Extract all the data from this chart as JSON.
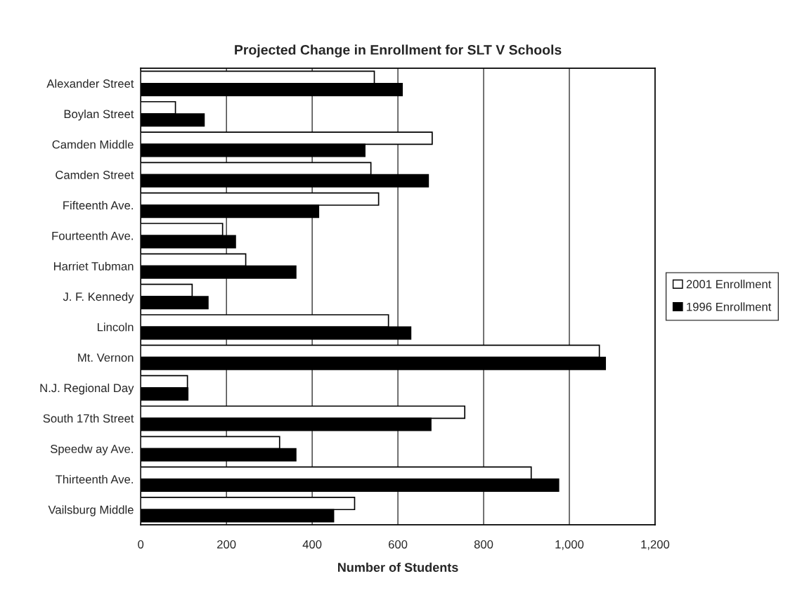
{
  "chart_data": {
    "type": "bar",
    "orientation": "horizontal",
    "title": "Projected Change in Enrollment for SLT V Schools",
    "xlabel": "Number of Students",
    "categories": [
      "Alexander Street",
      "Boylan Street",
      "Camden Middle",
      "Camden Street",
      "Fifteenth Ave.",
      "Fourteenth Ave.",
      "Harriet Tubman",
      "J. F. Kennedy",
      "Lincoln",
      "Mt. Vernon",
      "N.J. Regional Day",
      "South 17th Street",
      "Speedw ay Ave.",
      "Thirteenth Ave.",
      "Vailsburg Middle"
    ],
    "series": [
      {
        "name": "2001 Enrollment",
        "color": "#ffffff",
        "values": [
          545,
          81,
          680,
          537,
          555,
          191,
          245,
          120,
          578,
          1070,
          109,
          756,
          324,
          911,
          499
        ]
      },
      {
        "name": "1996 Enrollment",
        "color": "#000000",
        "values": [
          610,
          148,
          523,
          671,
          415,
          221,
          362,
          157,
          630,
          1084,
          110,
          677,
          362,
          975,
          450
        ]
      }
    ],
    "xlim": [
      0,
      1200
    ],
    "xticks": [
      0,
      200,
      400,
      600,
      800,
      {
        "value": 1000,
        "label": "1,000"
      },
      {
        "value": 1200,
        "label": "1,200"
      }
    ],
    "grid": "x",
    "legend": "right"
  }
}
